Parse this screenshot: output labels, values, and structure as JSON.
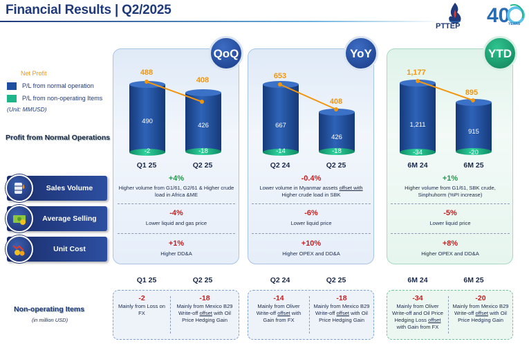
{
  "header": {
    "title": "Financial Results | Q2/2025",
    "logo_text": "PTTEP",
    "anniversary_number": "40",
    "anniversary_word": "YEARS"
  },
  "legend": {
    "net_profit": "Net Profit",
    "normal": "P/L from normal operation",
    "non_operating": "P/L from non-operating Items",
    "unit": "(Unit: MMUSD)"
  },
  "sections": {
    "profit_title": "Profit from Normal Operations",
    "non_operating_title": "Non-operating Items",
    "non_operating_unit": "(in million USD)"
  },
  "drivers": [
    {
      "label": "Sales Volume",
      "icon": "oil-barrel-icon"
    },
    {
      "label": "Average Selling Price",
      "icon": "money-icon"
    },
    {
      "label": "Unit Cost",
      "icon": "cost-chart-icon"
    }
  ],
  "colors": {
    "normal_operation": "#1f4f9e",
    "non_operating": "#1fb58a",
    "net_profit": "#f0960f",
    "increase": "#1f9a4a",
    "decrease": "#c81e1e"
  },
  "panels": {
    "qoq": {
      "badge": "QoQ",
      "periods": [
        "Q1 25",
        "Q2 25"
      ],
      "net_profit": [
        "488",
        "408"
      ],
      "normal": [
        "490",
        "426"
      ],
      "non_operating": [
        "-2",
        "-18"
      ],
      "sales_volume": {
        "change": "+4%",
        "desc": "Higher volume from G1/61, G2/61 & Higher crude load in Africa &ME"
      },
      "selling_price": {
        "change": "-4%",
        "desc": "Lower liquid and gas price"
      },
      "unit_cost": {
        "change": "+1%",
        "desc": "Higher DD&A"
      },
      "non_op": [
        {
          "period": "Q1 25",
          "value": "-2",
          "desc": "Mainly from Loss on FX"
        },
        {
          "period": "Q2 25",
          "value": "-18",
          "desc_a": "Mainly from Mexico B29 Write-off ",
          "desc_u": "offset",
          "desc_b": " with Oil Price Hedging Gain"
        }
      ]
    },
    "yoy": {
      "badge": "YoY",
      "periods": [
        "Q2 24",
        "Q2 25"
      ],
      "net_profit": [
        "653",
        "408"
      ],
      "normal": [
        "667",
        "426"
      ],
      "non_operating": [
        "-14",
        "-18"
      ],
      "sales_volume": {
        "change": "-0.4%",
        "desc_a": "Lower volume in Myanmar assets ",
        "desc_u": "offset with",
        "desc_b": " Higher crude load in SBK"
      },
      "selling_price": {
        "change": "-6%",
        "desc": "Lower liquid price"
      },
      "unit_cost": {
        "change": "+10%",
        "desc": "Higher OPEX and DD&A"
      },
      "non_op": [
        {
          "period": "Q2 24",
          "value": "-14",
          "desc_a": "Mainly from Oliver Write-off ",
          "desc_u": "offset",
          "desc_b": " with Gain from FX"
        },
        {
          "period": "Q2 25",
          "value": "-18",
          "desc_a": "Mainly from Mexico B29 Write-off ",
          "desc_u": "offset",
          "desc_b": " with Oil Price Hedging Gain"
        }
      ]
    },
    "ytd": {
      "badge": "YTD",
      "periods": [
        "6M 24",
        "6M 25"
      ],
      "net_profit": [
        "1,177",
        "895"
      ],
      "normal": [
        "1,211",
        "915"
      ],
      "non_operating": [
        "-34",
        "-20"
      ],
      "sales_volume": {
        "change": "+1%",
        "desc": "Higher volume from G1/61, SBK crude, Sinphuhorm (%PI increase)"
      },
      "selling_price": {
        "change": "-5%",
        "desc": "Lower liquid price"
      },
      "unit_cost": {
        "change": "+8%",
        "desc": "Higher OPEX and DD&A"
      },
      "non_op": [
        {
          "period": "6M 24",
          "value": "-34",
          "desc_a": "Mainly from Oliver Write-off and Oil Price Hedging Loss ",
          "desc_u": "offset",
          "desc_b": " with Gain from FX"
        },
        {
          "period": "6M 25",
          "value": "-20",
          "desc_a": "Mainly from Mexico B29 Write-off ",
          "desc_u": "offset",
          "desc_b": " with Oil Price Hedging Gain"
        }
      ]
    }
  }
}
